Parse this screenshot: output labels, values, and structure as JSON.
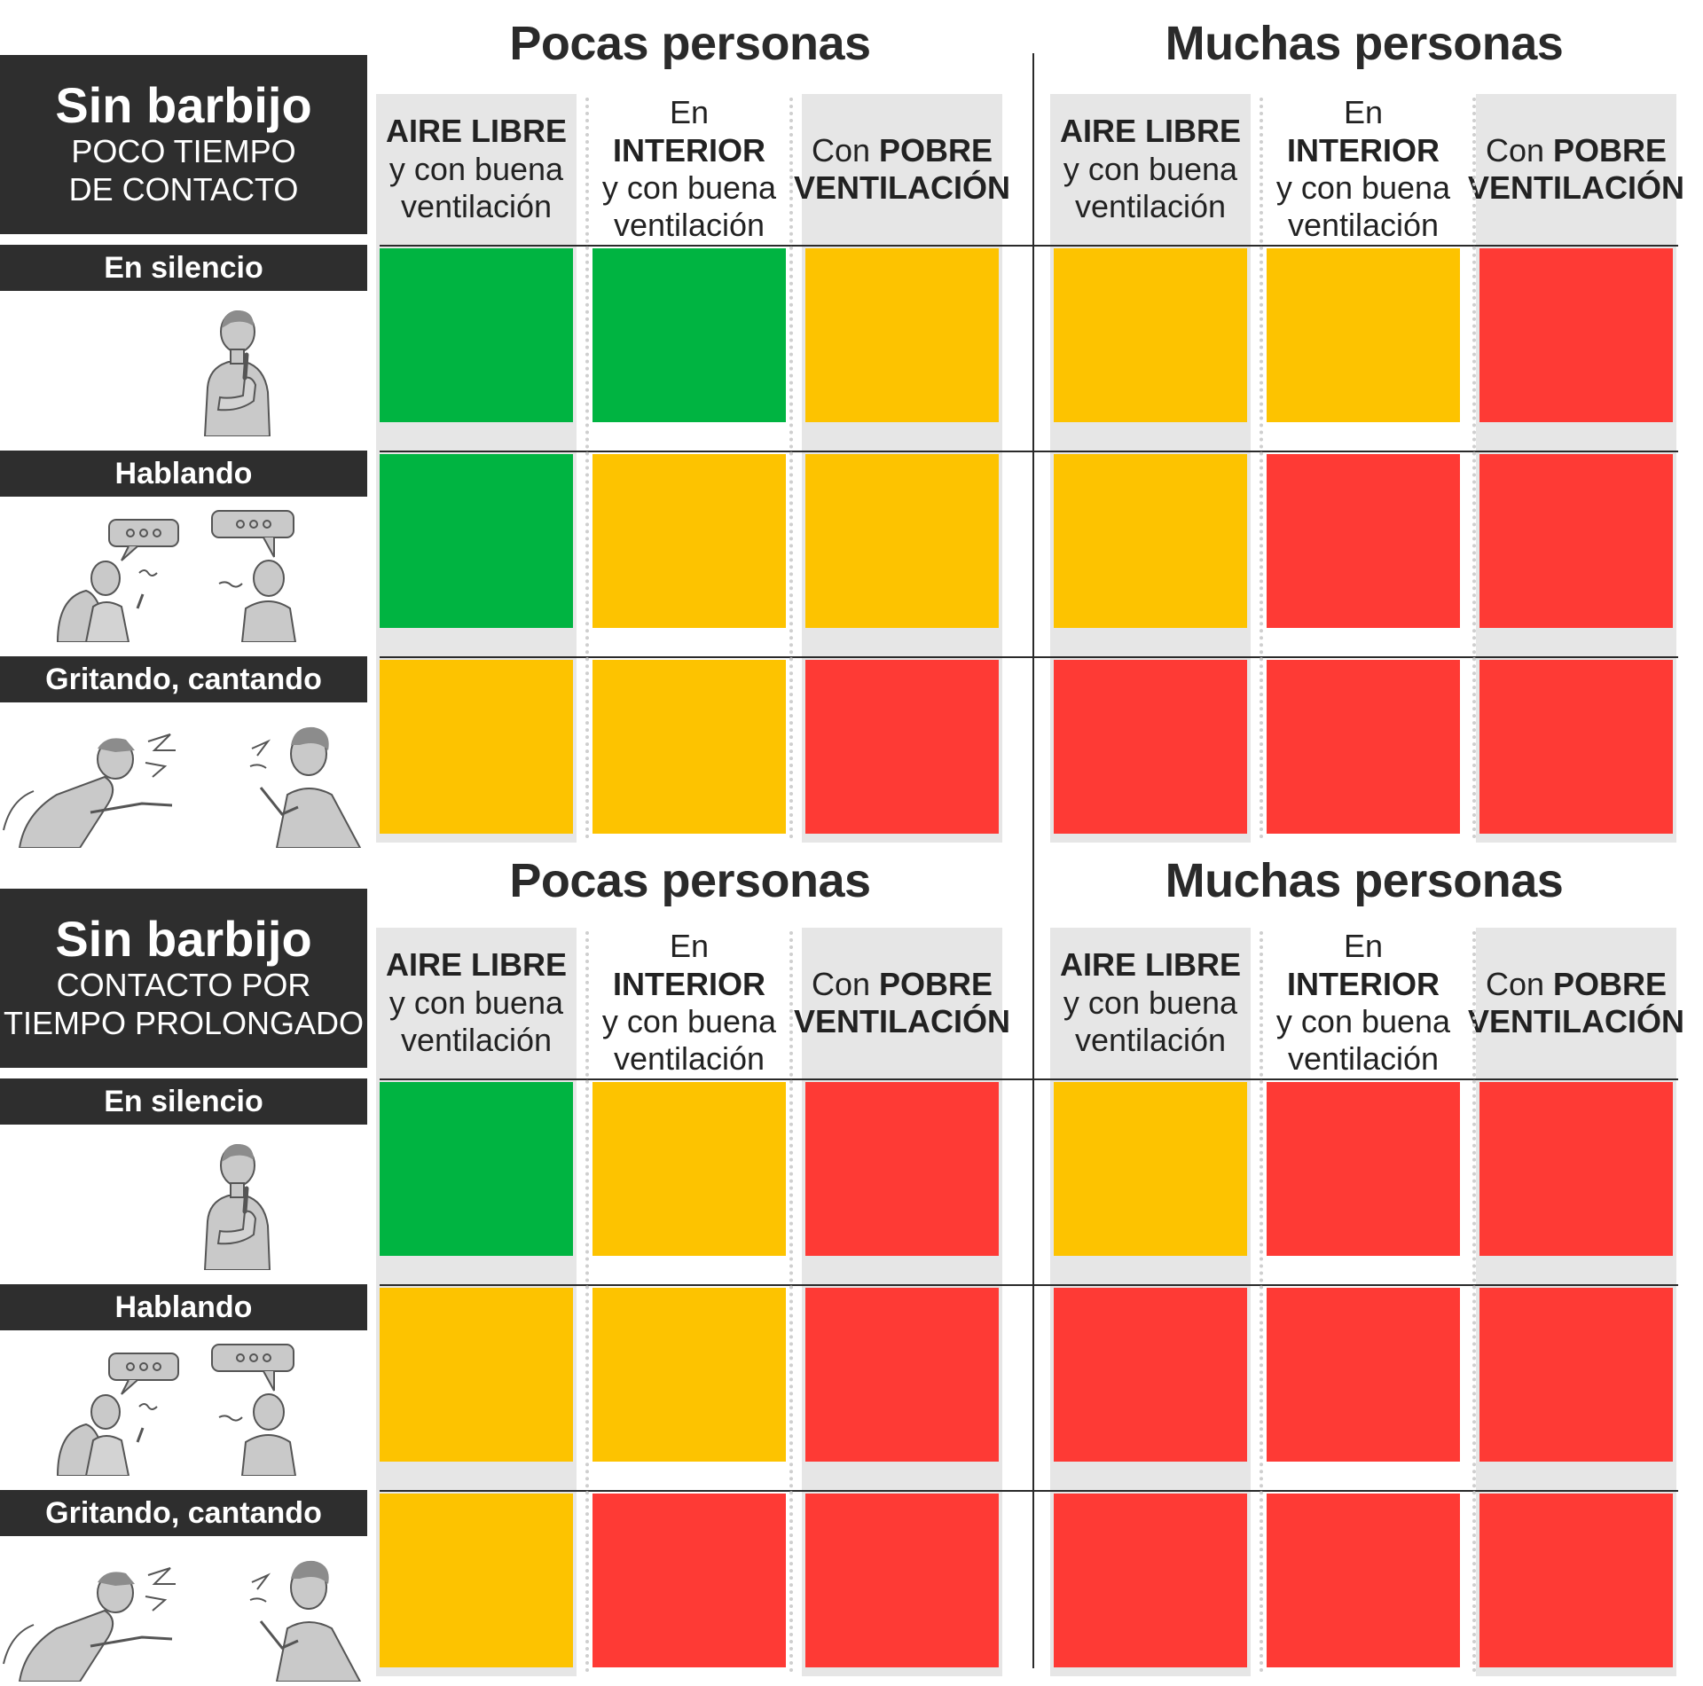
{
  "colors": {
    "green": "#00b441",
    "yellow": "#fdc300",
    "red": "#fe3a35",
    "dark": "#2e2e2e",
    "shade": "#e6e6e6"
  },
  "columns": {
    "outdoor": {
      "bold": "AIRE LIBRE",
      "rest": "y con buena ventilación"
    },
    "indoor": {
      "pre": "En ",
      "bold": "INTERIOR",
      "rest": "y con buena ventilación"
    },
    "poor": {
      "pre": "Con ",
      "bold1": "POBRE",
      "bold2": "VENTILACIÓN"
    }
  },
  "rows": [
    {
      "label": "En silencio",
      "icon": "thinking-person-icon"
    },
    {
      "label": "Hablando",
      "icon": "talking-people-icon"
    },
    {
      "label": "Gritando, cantando",
      "icon": "shouting-people-icon"
    }
  ],
  "sections": [
    {
      "title": "Sin barbijo",
      "subtitle": "POCO TIEMPO\nDE CONTACTO",
      "groups": [
        "Pocas personas",
        "Muchas personas"
      ],
      "risk": [
        [
          "green",
          "green",
          "yellow",
          "yellow",
          "yellow",
          "red"
        ],
        [
          "green",
          "yellow",
          "yellow",
          "yellow",
          "red",
          "red"
        ],
        [
          "yellow",
          "yellow",
          "red",
          "red",
          "red",
          "red"
        ]
      ]
    },
    {
      "title": "Sin barbijo",
      "subtitle": "CONTACTO POR\nTIEMPO PROLONGADO",
      "groups": [
        "Pocas personas",
        "Muchas personas"
      ],
      "risk": [
        [
          "green",
          "yellow",
          "red",
          "yellow",
          "red",
          "red"
        ],
        [
          "yellow",
          "yellow",
          "red",
          "red",
          "red",
          "red"
        ],
        [
          "yellow",
          "red",
          "red",
          "red",
          "red",
          "red"
        ]
      ]
    }
  ]
}
